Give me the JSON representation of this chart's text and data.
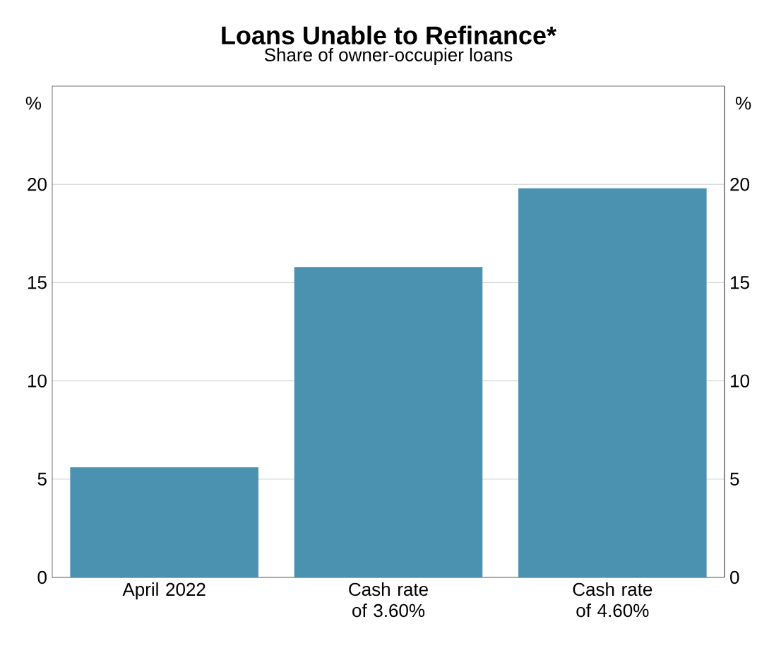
{
  "chart_data": {
    "type": "bar",
    "title": "Loans Unable to Refinance*",
    "subtitle": "Share of owner-occupier loans",
    "ylabel": "%",
    "y2label": "%",
    "categories": [
      "April 2022",
      "Cash rate of 3.60%",
      "Cash rate of 4.60%"
    ],
    "values": [
      5.6,
      15.8,
      19.8
    ],
    "color": "#4b91b0",
    "ylim": [
      0,
      25
    ],
    "yticks": [
      0,
      5,
      10,
      15,
      20
    ],
    "y2lim": [
      0,
      25
    ],
    "y2ticks": [
      0,
      5,
      10,
      15,
      20
    ],
    "grid": "y"
  }
}
